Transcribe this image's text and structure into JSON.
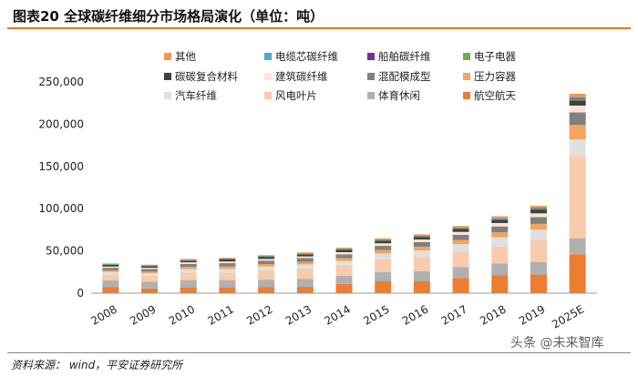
{
  "header": {
    "title": "图表20   全球碳纤维细分市场格局演化（单位：吨）"
  },
  "footer": {
    "source": "资料来源： wind，平安证券研究所",
    "watermark": "头条 @未来智库"
  },
  "chart_data": {
    "type": "bar",
    "stacked": true,
    "title": "全球碳纤维细分市场格局演化（单位：吨）",
    "xlabel": "",
    "ylabel": "",
    "ylim": [
      0,
      250000
    ],
    "yticks": [
      0,
      50000,
      100000,
      150000,
      200000,
      250000
    ],
    "ytick_labels": [
      "0",
      "50,000",
      "100,000",
      "150,000",
      "200,000",
      "250,000"
    ],
    "grid": false,
    "legend_position": "top",
    "categories": [
      "2008",
      "2009",
      "2010",
      "2011",
      "2012",
      "2013",
      "2014",
      "2015",
      "2016",
      "2017",
      "2018",
      "2019",
      "2025E"
    ],
    "series": [
      {
        "name": "航空航天",
        "color": "#ed7d31",
        "values": [
          7000,
          5500,
          6500,
          6500,
          7000,
          7500,
          11000,
          14000,
          14000,
          18000,
          21000,
          22000,
          46000
        ]
      },
      {
        "name": "体育休闲",
        "color": "#b0b0b0",
        "values": [
          8000,
          8000,
          9000,
          9000,
          9000,
          9500,
          9500,
          11000,
          12000,
          13000,
          14000,
          15000,
          19000
        ]
      },
      {
        "name": "风电叶片",
        "color": "#f8cbad",
        "values": [
          7000,
          7000,
          9000,
          9000,
          11000,
          12000,
          12500,
          15000,
          16500,
          18000,
          20000,
          26000,
          97000
        ]
      },
      {
        "name": "汽车纤维",
        "color": "#e0e0e0",
        "values": [
          3000,
          3000,
          4000,
          4000,
          4500,
          5000,
          5000,
          7000,
          8000,
          9000,
          11000,
          12000,
          20000
        ]
      },
      {
        "name": "压力容器",
        "color": "#f4a460",
        "values": [
          2000,
          2000,
          2500,
          3000,
          3000,
          3000,
          3500,
          4000,
          4500,
          5000,
          6000,
          7000,
          17000
        ]
      },
      {
        "name": "混配模成型",
        "color": "#808080",
        "values": [
          3000,
          3000,
          3500,
          4000,
          4000,
          4500,
          4500,
          5000,
          5500,
          6000,
          7000,
          8000,
          15000
        ]
      },
      {
        "name": "建筑碳纤维",
        "color": "#fce4d6",
        "values": [
          1500,
          1500,
          2000,
          2000,
          2000,
          2000,
          2500,
          3000,
          3000,
          3500,
          4000,
          4500,
          8000
        ]
      },
      {
        "name": "碳碳复合材料",
        "color": "#404040",
        "values": [
          2000,
          2000,
          2000,
          2500,
          2500,
          2500,
          3000,
          3000,
          3000,
          3500,
          4000,
          4500,
          6000
        ]
      },
      {
        "name": "电子电器",
        "color": "#70ad47",
        "values": [
          500,
          500,
          600,
          600,
          600,
          700,
          700,
          800,
          900,
          1000,
          1100,
          1200,
          2000
        ]
      },
      {
        "name": "船舶碳纤维",
        "color": "#7030a0",
        "values": [
          300,
          300,
          300,
          300,
          300,
          300,
          300,
          400,
          400,
          400,
          500,
          500,
          1000
        ]
      },
      {
        "name": "电缆芯碳纤维",
        "color": "#4bacc6",
        "values": [
          200,
          200,
          300,
          300,
          300,
          300,
          400,
          400,
          500,
          600,
          700,
          800,
          1500
        ]
      },
      {
        "name": "其他",
        "color": "#f79646",
        "values": [
          700,
          700,
          800,
          800,
          800,
          900,
          1000,
          1200,
          1300,
          1500,
          1700,
          2000,
          3500
        ]
      }
    ],
    "legend_order": [
      "其他",
      "电缆芯碳纤维",
      "船舶碳纤维",
      "电子电器",
      "碳碳复合材料",
      "建筑碳纤维",
      "混配模成型",
      "压力容器",
      "汽车纤维",
      "风电叶片",
      "体育休闲",
      "航空航天"
    ]
  }
}
